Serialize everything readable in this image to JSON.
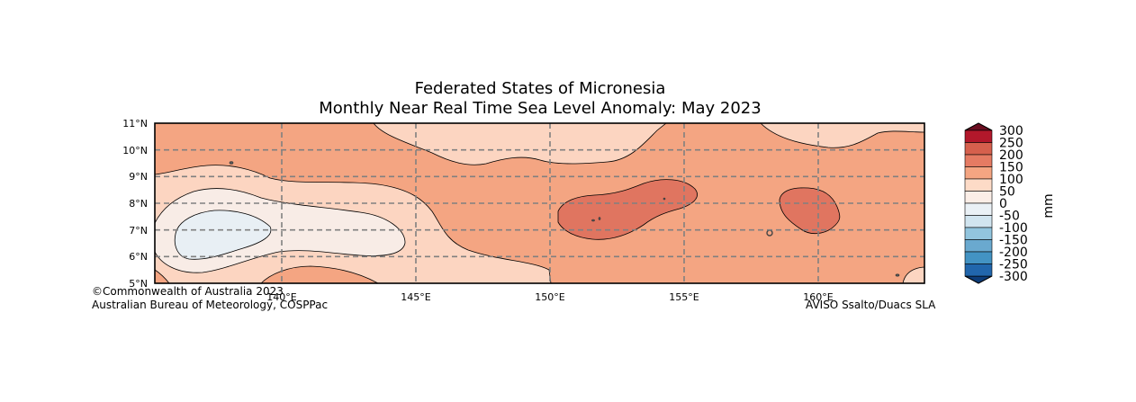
{
  "title": {
    "line1": "Federated States of Micronesia",
    "line2": "Monthly Near Real Time Sea Level Anomaly: May 2023"
  },
  "map": {
    "lat_labels": [
      "11°N",
      "10°N",
      "9°N",
      "8°N",
      "7°N",
      "6°N",
      "5°N"
    ],
    "lon_labels": [
      "140°E",
      "145°E",
      "150°E",
      "155°E",
      "160°E"
    ],
    "lat_range": [
      5,
      11
    ],
    "lon_range": [
      135.3,
      164.0
    ],
    "gridlines": true
  },
  "colorbar": {
    "unit": "mm",
    "ticks": [
      "300",
      "250",
      "200",
      "150",
      "100",
      "50",
      "0",
      "-50",
      "-100",
      "-150",
      "-200",
      "-250",
      "-300"
    ],
    "colors": [
      "#6b0d20",
      "#b2182b",
      "#d6604d",
      "#e57b63",
      "#f4a582",
      "#fddbc7",
      "#fbeee7",
      "#eaf1f6",
      "#d1e5f0",
      "#92c5de",
      "#6aa9cf",
      "#4393c3",
      "#2166ac",
      "#0c3c78"
    ]
  },
  "credits": {
    "left_line1": "©Commonwealth of Australia 2023",
    "left_line2": "Australian Bureau of Meteorology, COSPPac",
    "right": "AVISO Ssalto/Duacs SLA"
  }
}
